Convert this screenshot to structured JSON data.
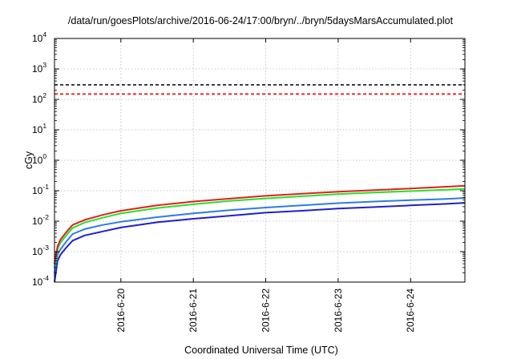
{
  "title": "/data/run/goesPlots/archive/2016-06-24/17:00/bryn/../bryn/5daysMarsAccumulated.plot",
  "chart_data": {
    "type": "line",
    "title": "/data/run/goesPlots/archive/2016-06-24/17:00/bryn/../bryn/5daysMarsAccumulated.plot",
    "xlabel": "Coordinated Universal Time (UTC)",
    "ylabel": "cGy",
    "yscale": "log",
    "ylim": [
      0.0001,
      10000
    ],
    "xlim": [
      "2016-06-19T02:00",
      "2016-06-24T18:00"
    ],
    "grid": true,
    "x_ticks": [
      {
        "x": "2016-06-20T00:00",
        "label": "2016-6-20"
      },
      {
        "x": "2016-06-21T00:00",
        "label": "2016-6-21"
      },
      {
        "x": "2016-06-22T00:00",
        "label": "2016-6-22"
      },
      {
        "x": "2016-06-23T00:00",
        "label": "2016-6-23"
      },
      {
        "x": "2016-06-24T00:00",
        "label": "2016-6-24"
      }
    ],
    "y_ticks": [
      {
        "value": 0.0001,
        "base": "10",
        "exp": "-4"
      },
      {
        "value": 0.001,
        "base": "10",
        "exp": "-3"
      },
      {
        "value": 0.01,
        "base": "10",
        "exp": "-2"
      },
      {
        "value": 0.1,
        "base": "10",
        "exp": "-1"
      },
      {
        "value": 1,
        "base": "10",
        "exp": "0"
      },
      {
        "value": 10,
        "base": "10",
        "exp": "1"
      },
      {
        "value": 100,
        "base": "10",
        "exp": "2"
      },
      {
        "value": 1000,
        "base": "10",
        "exp": "3"
      },
      {
        "value": 10000,
        "base": "10",
        "exp": "4"
      }
    ],
    "reference_lines": [
      {
        "y": 300,
        "color": "#000000",
        "style": "dashed"
      },
      {
        "y": 150,
        "color": "#ff0000",
        "style": "dashed"
      }
    ],
    "series": [
      {
        "color": "#e0201b",
        "x": [
          "2016-06-19T02:00",
          "2016-06-19T03:00",
          "2016-06-19T04:00",
          "2016-06-19T06:00",
          "2016-06-19T08:00",
          "2016-06-19T12:00",
          "2016-06-19T18:00",
          "2016-06-20T00:00",
          "2016-06-20T12:00",
          "2016-06-21T00:00",
          "2016-06-21T12:00",
          "2016-06-22T00:00",
          "2016-06-22T12:00",
          "2016-06-23T00:00",
          "2016-06-23T12:00",
          "2016-06-24T00:00",
          "2016-06-24T12:00",
          "2016-06-24T18:00"
        ],
        "values": [
          0.0004,
          0.0015,
          0.0025,
          0.0045,
          0.0075,
          0.011,
          0.016,
          0.022,
          0.033,
          0.044,
          0.055,
          0.068,
          0.08,
          0.093,
          0.105,
          0.118,
          0.135,
          0.145
        ]
      },
      {
        "color": "#28e028",
        "x": [
          "2016-06-19T02:00",
          "2016-06-19T03:00",
          "2016-06-19T04:00",
          "2016-06-19T06:00",
          "2016-06-19T08:00",
          "2016-06-19T12:00",
          "2016-06-19T18:00",
          "2016-06-20T00:00",
          "2016-06-20T12:00",
          "2016-06-21T00:00",
          "2016-06-21T12:00",
          "2016-06-22T00:00",
          "2016-06-22T12:00",
          "2016-06-23T00:00",
          "2016-06-23T12:00",
          "2016-06-24T00:00",
          "2016-06-24T12:00",
          "2016-06-24T18:00"
        ],
        "values": [
          0.0003,
          0.0012,
          0.002,
          0.0035,
          0.006,
          0.009,
          0.013,
          0.018,
          0.027,
          0.036,
          0.046,
          0.056,
          0.066,
          0.077,
          0.087,
          0.097,
          0.108,
          0.115
        ]
      },
      {
        "color": "#2c7be5",
        "x": [
          "2016-06-19T02:00",
          "2016-06-19T03:00",
          "2016-06-19T04:00",
          "2016-06-19T06:00",
          "2016-06-19T08:00",
          "2016-06-19T12:00",
          "2016-06-19T18:00",
          "2016-06-20T00:00",
          "2016-06-20T12:00",
          "2016-06-21T00:00",
          "2016-06-21T12:00",
          "2016-06-22T00:00",
          "2016-06-22T12:00",
          "2016-06-23T00:00",
          "2016-06-23T12:00",
          "2016-06-24T00:00",
          "2016-06-24T12:00",
          "2016-06-24T18:00"
        ],
        "values": [
          0.0002,
          0.0008,
          0.0012,
          0.0022,
          0.0038,
          0.0055,
          0.0075,
          0.0095,
          0.0135,
          0.018,
          0.023,
          0.028,
          0.033,
          0.039,
          0.044,
          0.049,
          0.054,
          0.058
        ]
      },
      {
        "color": "#1f1fd0",
        "x": [
          "2016-06-19T02:00",
          "2016-06-19T03:00",
          "2016-06-19T04:00",
          "2016-06-19T06:00",
          "2016-06-19T08:00",
          "2016-06-19T12:00",
          "2016-06-19T18:00",
          "2016-06-20T00:00",
          "2016-06-20T12:00",
          "2016-06-21T00:00",
          "2016-06-21T12:00",
          "2016-06-22T00:00",
          "2016-06-22T12:00",
          "2016-06-23T00:00",
          "2016-06-23T12:00",
          "2016-06-24T00:00",
          "2016-06-24T12:00",
          "2016-06-24T18:00"
        ],
        "values": [
          0.0001,
          0.0005,
          0.0008,
          0.0014,
          0.0023,
          0.0034,
          0.0046,
          0.0062,
          0.0092,
          0.012,
          0.015,
          0.019,
          0.022,
          0.026,
          0.029,
          0.033,
          0.037,
          0.04
        ]
      }
    ]
  }
}
